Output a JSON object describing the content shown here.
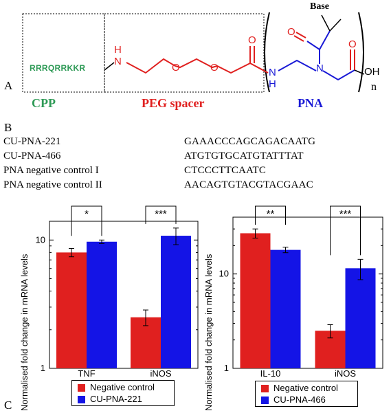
{
  "panel_a": {
    "letter": "A",
    "cpp_sequence": "RRRQRRKKR",
    "cpp_label": "CPP",
    "peg_label": "PEG spacer",
    "pna_label": "PNA",
    "atom_h1": "H",
    "atom_n1": "N",
    "atom_o1": "O",
    "atom_o2": "O",
    "atom_o3": "O",
    "atom_n2": "N",
    "atom_h2": "H",
    "atom_n3": "N",
    "atom_o4": "O",
    "atom_o5": "O",
    "atom_oh": "OH",
    "base_label": "Base",
    "repeat_n": "n",
    "colors": {
      "cpp": "#2e9a56",
      "peg": "#e0201f",
      "pna": "#1a1ad6"
    }
  },
  "panel_b": {
    "letter": "B",
    "rows": [
      {
        "name": "CU-PNA-221",
        "sequence": "GAAACCCAGCAGACAATG"
      },
      {
        "name": "CU-PNA-466",
        "sequence": "ATGTGTGCATGTATTTAT"
      },
      {
        "name": "PNA negative control I",
        "sequence": "CTCCCTTCAATC"
      },
      {
        "name": "PNA negative control II",
        "sequence": "AACAGTGTACGTACGAAC"
      }
    ]
  },
  "panel_c": {
    "letter": "C",
    "bar_colors": {
      "negative": "#e0201f",
      "treated": "#1414e6"
    },
    "ylabel": "Normalised fold change in mRNA levels",
    "chart_data": [
      {
        "type": "bar",
        "scale": "log",
        "ylim": [
          1,
          14
        ],
        "ytick_labels": [
          "1",
          "10"
        ],
        "categories": [
          "TNF",
          "iNOS"
        ],
        "series": [
          {
            "name": "Negative control",
            "values": [
              8.0,
              2.5
            ],
            "errors": [
              0.6,
              0.35
            ]
          },
          {
            "name": "CU-PNA-221",
            "values": [
              9.7,
              10.8
            ],
            "errors": [
              0.3,
              1.6
            ]
          }
        ],
        "significance": [
          "*",
          "***"
        ]
      },
      {
        "type": "bar",
        "scale": "log",
        "ylim": [
          1,
          40
        ],
        "ytick_labels": [
          "1",
          "10"
        ],
        "categories": [
          "IL-10",
          "iNOS"
        ],
        "series": [
          {
            "name": "Negative control",
            "values": [
              27.0,
              2.5
            ],
            "errors": [
              3.0,
              0.4
            ]
          },
          {
            "name": "CU-PNA-466",
            "values": [
              18.0,
              11.5
            ],
            "errors": [
              1.2,
              2.8
            ]
          }
        ],
        "significance": [
          "**",
          "***"
        ]
      }
    ]
  }
}
